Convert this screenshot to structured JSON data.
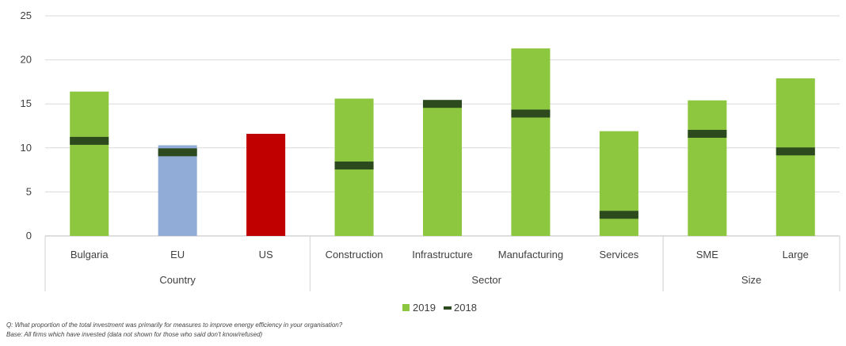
{
  "chart_data": {
    "type": "bar",
    "ylim": [
      0,
      25
    ],
    "yticks": [
      0,
      5,
      10,
      15,
      20,
      25
    ],
    "grid": true,
    "categories": [
      "Bulgaria",
      "EU",
      "US",
      "Construction",
      "Infrastructure",
      "Manufacturing",
      "Services",
      "SME",
      "Large"
    ],
    "groups": [
      {
        "label": "Country",
        "categories": [
          "Bulgaria",
          "EU",
          "US"
        ]
      },
      {
        "label": "Sector",
        "categories": [
          "Construction",
          "Infrastructure",
          "Manufacturing",
          "Services"
        ]
      },
      {
        "label": "Size",
        "categories": [
          "SME",
          "Large"
        ]
      }
    ],
    "series": [
      {
        "name": "2019",
        "type": "bar",
        "values": [
          16.4,
          10.3,
          11.6,
          15.6,
          15.2,
          21.3,
          11.9,
          15.4,
          17.9
        ]
      },
      {
        "name": "2018",
        "type": "marker",
        "values": [
          10.8,
          9.5,
          null,
          8.0,
          15.0,
          13.9,
          2.4,
          11.6,
          9.6
        ]
      }
    ],
    "bar_colors": [
      "#8dc63f",
      "#92acd8",
      "#c00000",
      "#8dc63f",
      "#8dc63f",
      "#8dc63f",
      "#8dc63f",
      "#8dc63f",
      "#8dc63f"
    ],
    "marker_color": "#2d4a1e",
    "legend": {
      "position": "bottom",
      "entries": [
        {
          "label": "2019",
          "color": "#8dc63f"
        },
        {
          "label": "2018",
          "color": "#2d4a1e"
        }
      ]
    }
  },
  "footnotes": {
    "question": "Q:  What proportion of the total investment was primarily for measures to improve energy efficiency in your organisation?",
    "base": "Base: All firms which have invested (data not shown for those who said don't know/refused)"
  }
}
